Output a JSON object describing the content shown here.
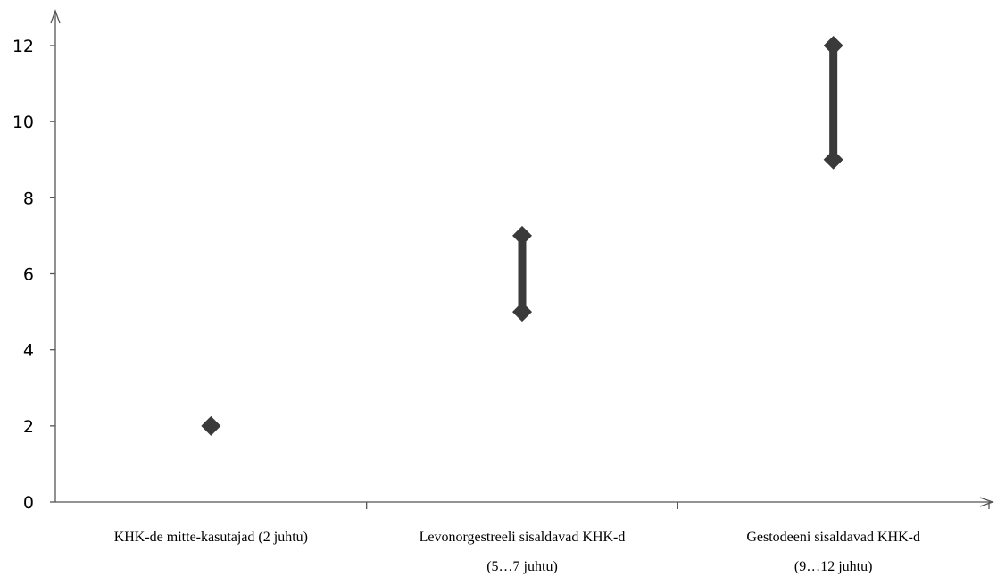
{
  "chart_data": {
    "type": "scatter",
    "title": "",
    "xlabel": "",
    "ylabel": "",
    "ylim": [
      0,
      12
    ],
    "yticks": [
      0,
      2,
      4,
      6,
      8,
      10,
      12
    ],
    "grid": false,
    "categories": [
      {
        "lines": [
          "KHK-de mitte-kasutajad (2 juhtu)"
        ],
        "low": 2,
        "high": 2
      },
      {
        "lines": [
          "Levonorgestreeli sisaldavad KHK-d",
          "(5…7 juhtu)"
        ],
        "low": 5,
        "high": 7
      },
      {
        "lines": [
          "Gestodeeni sisaldavad KHK-d",
          "(9…12 juhtu)"
        ],
        "low": 9,
        "high": 12
      }
    ],
    "colors": {
      "marker": "#3a3a3a",
      "axis": "#555555"
    }
  }
}
